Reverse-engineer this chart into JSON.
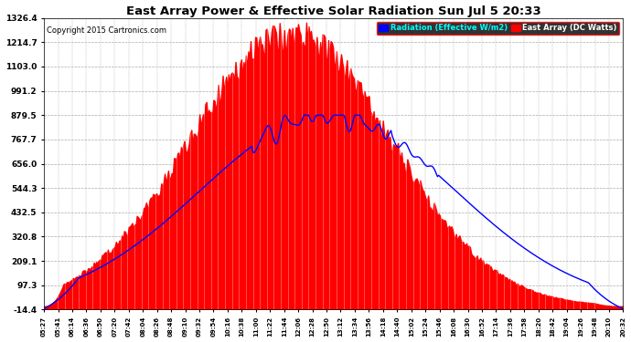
{
  "title": "East Array Power & Effective Solar Radiation Sun Jul 5 20:33",
  "copyright": "Copyright 2015 Cartronics.com",
  "bg_color": "#ffffff",
  "plot_bg_color": "#ffffff",
  "grid_color": "#aaaaaa",
  "yticks": [
    -14.4,
    97.3,
    209.1,
    320.8,
    432.5,
    544.3,
    656.0,
    767.7,
    879.5,
    991.2,
    1103.0,
    1214.7,
    1326.4
  ],
  "ymin": -14.4,
  "ymax": 1326.4,
  "red_fill_color": "#ff0000",
  "blue_line_color": "#0000ff",
  "legend_radiation_label": "Radiation (Effective W/m2)",
  "legend_east_label": "East Array (DC Watts)",
  "xtick_labels": [
    "05:27",
    "05:41",
    "06:14",
    "06:36",
    "06:50",
    "07:20",
    "07:42",
    "08:04",
    "08:26",
    "08:48",
    "09:10",
    "09:32",
    "09:54",
    "10:16",
    "10:38",
    "11:00",
    "11:22",
    "11:44",
    "12:06",
    "12:28",
    "12:50",
    "13:12",
    "13:34",
    "13:56",
    "14:18",
    "14:40",
    "15:02",
    "15:24",
    "15:46",
    "16:08",
    "16:30",
    "16:52",
    "17:14",
    "17:36",
    "17:58",
    "18:20",
    "18:42",
    "19:04",
    "19:26",
    "19:48",
    "20:10",
    "20:32"
  ]
}
